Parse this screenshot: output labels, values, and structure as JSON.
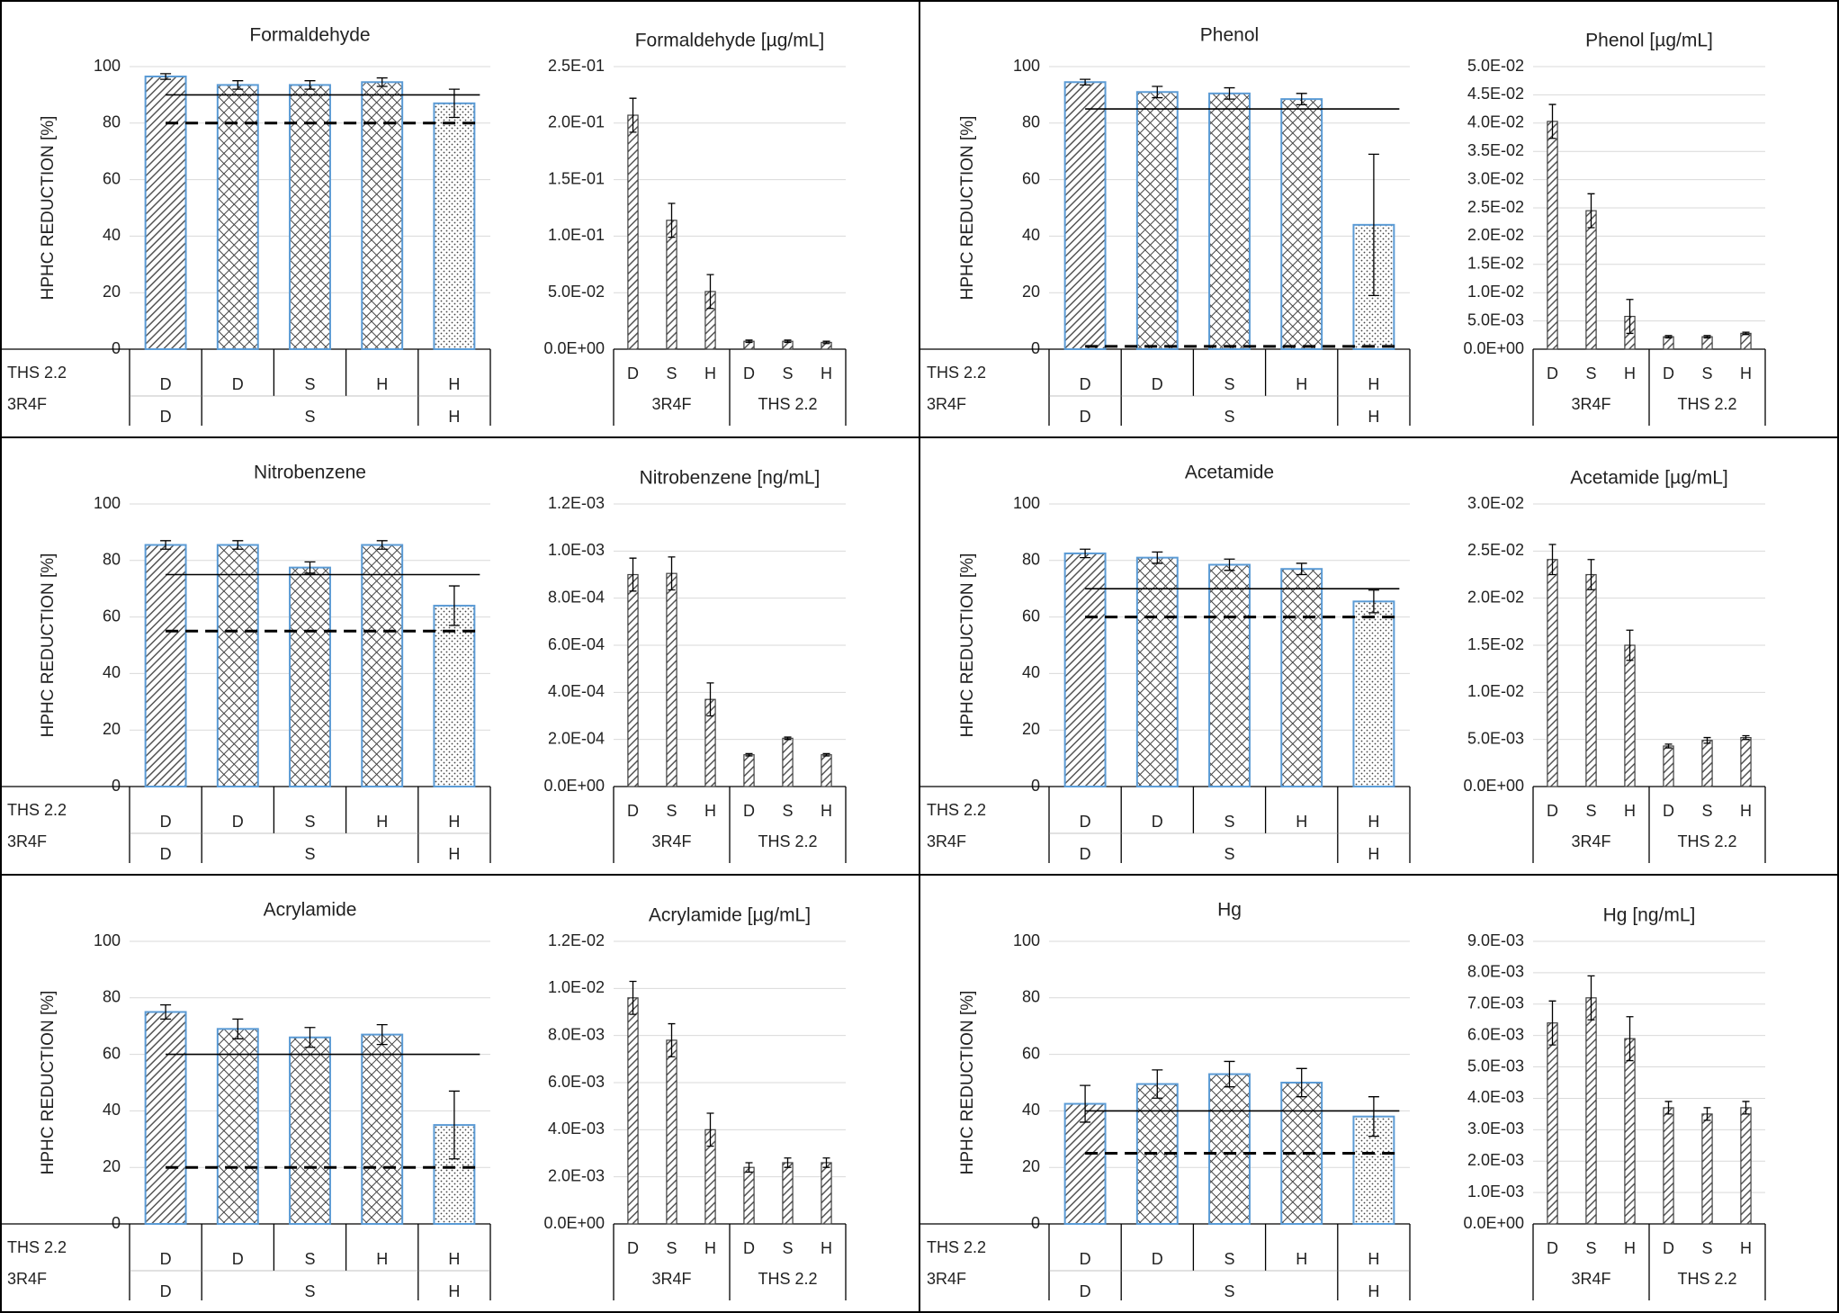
{
  "chart_data": [
    {
      "type": "bar",
      "title": "Formaldehyde",
      "y_label": "HPHC REDUCTION [%]",
      "ylim": [
        0,
        100
      ],
      "yticks": [
        0,
        20,
        40,
        60,
        80,
        100
      ],
      "grid": true,
      "row_labels": [
        "THS 2.2",
        "3R4F"
      ],
      "categories": [
        "D",
        "D",
        "S",
        "H",
        "H"
      ],
      "groups": [
        {
          "label": "D",
          "size": 1
        },
        {
          "label": "S",
          "size": 3
        },
        {
          "label": "H",
          "size": 1
        }
      ],
      "values": [
        96.5,
        93.5,
        93.5,
        94.5,
        87
      ],
      "errors": [
        1,
        1.5,
        1.5,
        1.5,
        5
      ],
      "patterns": [
        "hatch",
        "crosshatch",
        "crosshatch",
        "crosshatch",
        "dots"
      ],
      "edge_color": "#5b9bd5",
      "reference_lines": [
        {
          "value": 90,
          "style": "solid"
        },
        {
          "value": 80,
          "style": "dashed"
        }
      ]
    },
    {
      "type": "bar",
      "title": "Formaldehyde [µg/mL]",
      "ylim": [
        0,
        0.25
      ],
      "yticks": [
        {
          "value": 0,
          "label": "0.0E+00"
        },
        {
          "value": 0.05,
          "label": "5.0E-02"
        },
        {
          "value": 0.1,
          "label": "1.0E-01"
        },
        {
          "value": 0.15,
          "label": "1.5E-01"
        },
        {
          "value": 0.2,
          "label": "2.0E-01"
        },
        {
          "value": 0.25,
          "label": "2.5E-01"
        }
      ],
      "grid": true,
      "categories": [
        "D",
        "S",
        "H",
        "D",
        "S",
        "H"
      ],
      "groups": [
        {
          "label": "3R4F",
          "size": 3
        },
        {
          "label": "THS 2.2",
          "size": 3
        }
      ],
      "values": [
        0.207,
        0.114,
        0.051,
        0.007,
        0.007,
        0.006
      ],
      "errors": [
        0.015,
        0.015,
        0.015,
        0.001,
        0.001,
        0.001
      ],
      "patterns": [
        "hatch",
        "hatch",
        "hatch",
        "hatch",
        "hatch",
        "hatch"
      ],
      "edge_color": "#404040"
    },
    {
      "type": "bar",
      "title": "Phenol",
      "y_label": "HPHC REDUCTION [%]",
      "ylim": [
        0,
        100
      ],
      "yticks": [
        0,
        20,
        40,
        60,
        80,
        100
      ],
      "grid": true,
      "row_labels": [
        "THS 2.2",
        "3R4F"
      ],
      "categories": [
        "D",
        "D",
        "S",
        "H",
        "H"
      ],
      "groups": [
        {
          "label": "D",
          "size": 1
        },
        {
          "label": "S",
          "size": 3
        },
        {
          "label": "H",
          "size": 1
        }
      ],
      "values": [
        94.5,
        91,
        90.5,
        88.5,
        44
      ],
      "errors": [
        1,
        2,
        2,
        2,
        25
      ],
      "patterns": [
        "hatch",
        "crosshatch",
        "crosshatch",
        "crosshatch",
        "dots"
      ],
      "edge_color": "#5b9bd5",
      "reference_lines": [
        {
          "value": 85,
          "style": "solid"
        },
        {
          "value": 1,
          "style": "dashed"
        }
      ]
    },
    {
      "type": "bar",
      "title": "Phenol [µg/mL]",
      "ylim": [
        0,
        0.05
      ],
      "yticks": [
        {
          "value": 0,
          "label": "0.0E+00"
        },
        {
          "value": 0.005,
          "label": "5.0E-03"
        },
        {
          "value": 0.01,
          "label": "1.0E-02"
        },
        {
          "value": 0.015,
          "label": "1.5E-02"
        },
        {
          "value": 0.02,
          "label": "2.0E-02"
        },
        {
          "value": 0.025,
          "label": "2.5E-02"
        },
        {
          "value": 0.03,
          "label": "3.0E-02"
        },
        {
          "value": 0.035,
          "label": "3.5E-02"
        },
        {
          "value": 0.04,
          "label": "4.0E-02"
        },
        {
          "value": 0.045,
          "label": "4.5E-02"
        },
        {
          "value": 0.05,
          "label": "5.0E-02"
        }
      ],
      "grid": true,
      "categories": [
        "D",
        "S",
        "H",
        "D",
        "S",
        "H"
      ],
      "groups": [
        {
          "label": "3R4F",
          "size": 3
        },
        {
          "label": "THS 2.2",
          "size": 3
        }
      ],
      "values": [
        0.0403,
        0.0245,
        0.0058,
        0.0022,
        0.0022,
        0.0028
      ],
      "errors": [
        0.003,
        0.003,
        0.003,
        0.0002,
        0.0002,
        0.0002
      ],
      "patterns": [
        "hatch",
        "hatch",
        "hatch",
        "hatch",
        "hatch",
        "hatch"
      ],
      "edge_color": "#404040"
    },
    {
      "type": "bar",
      "title": "Nitrobenzene",
      "y_label": "HPHC REDUCTION [%]",
      "ylim": [
        0,
        100
      ],
      "yticks": [
        0,
        20,
        40,
        60,
        80,
        100
      ],
      "grid": true,
      "row_labels": [
        "THS 2.2",
        "3R4F"
      ],
      "categories": [
        "D",
        "D",
        "S",
        "H",
        "H"
      ],
      "groups": [
        {
          "label": "D",
          "size": 1
        },
        {
          "label": "S",
          "size": 3
        },
        {
          "label": "H",
          "size": 1
        }
      ],
      "values": [
        85.5,
        85.5,
        77.5,
        85.5,
        64
      ],
      "errors": [
        1.5,
        1.5,
        2,
        1.5,
        7
      ],
      "patterns": [
        "hatch",
        "crosshatch",
        "crosshatch",
        "crosshatch",
        "dots"
      ],
      "edge_color": "#5b9bd5",
      "reference_lines": [
        {
          "value": 75,
          "style": "solid"
        },
        {
          "value": 55,
          "style": "dashed"
        }
      ]
    },
    {
      "type": "bar",
      "title": "Nitrobenzene [ng/mL]",
      "ylim": [
        0,
        0.0012
      ],
      "yticks": [
        {
          "value": 0,
          "label": "0.0E+00"
        },
        {
          "value": 0.0002,
          "label": "2.0E-04"
        },
        {
          "value": 0.0004,
          "label": "4.0E-04"
        },
        {
          "value": 0.0006,
          "label": "6.0E-04"
        },
        {
          "value": 0.0008,
          "label": "8.0E-04"
        },
        {
          "value": 0.001,
          "label": "1.0E-03"
        },
        {
          "value": 0.0012,
          "label": "1.2E-03"
        }
      ],
      "grid": true,
      "categories": [
        "D",
        "S",
        "H",
        "D",
        "S",
        "H"
      ],
      "groups": [
        {
          "label": "3R4F",
          "size": 3
        },
        {
          "label": "THS 2.2",
          "size": 3
        }
      ],
      "values": [
        0.0009,
        0.000905,
        0.00037,
        0.000135,
        0.000205,
        0.000135
      ],
      "errors": [
        7e-05,
        7e-05,
        7e-05,
        5e-06,
        5e-06,
        5e-06
      ],
      "patterns": [
        "hatch",
        "hatch",
        "hatch",
        "hatch",
        "hatch",
        "hatch"
      ],
      "edge_color": "#404040"
    },
    {
      "type": "bar",
      "title": "Acetamide",
      "y_label": "HPHC REDUCTION [%]",
      "ylim": [
        0,
        100
      ],
      "yticks": [
        0,
        20,
        40,
        60,
        80,
        100
      ],
      "grid": true,
      "row_labels": [
        "THS 2.2",
        "3R4F"
      ],
      "categories": [
        "D",
        "D",
        "S",
        "H",
        "H"
      ],
      "groups": [
        {
          "label": "D",
          "size": 1
        },
        {
          "label": "S",
          "size": 3
        },
        {
          "label": "H",
          "size": 1
        }
      ],
      "values": [
        82.5,
        81,
        78.5,
        77,
        65.5
      ],
      "errors": [
        1.5,
        2,
        2,
        2,
        4
      ],
      "patterns": [
        "hatch",
        "crosshatch",
        "crosshatch",
        "crosshatch",
        "dots"
      ],
      "edge_color": "#5b9bd5",
      "reference_lines": [
        {
          "value": 70,
          "style": "solid"
        },
        {
          "value": 60,
          "style": "dashed"
        }
      ]
    },
    {
      "type": "bar",
      "title": "Acetamide [µg/mL]",
      "ylim": [
        0,
        0.03
      ],
      "yticks": [
        {
          "value": 0,
          "label": "0.0E+00"
        },
        {
          "value": 0.005,
          "label": "5.0E-03"
        },
        {
          "value": 0.01,
          "label": "1.0E-02"
        },
        {
          "value": 0.015,
          "label": "1.5E-02"
        },
        {
          "value": 0.02,
          "label": "2.0E-02"
        },
        {
          "value": 0.025,
          "label": "2.5E-02"
        },
        {
          "value": 0.03,
          "label": "3.0E-02"
        }
      ],
      "grid": true,
      "categories": [
        "D",
        "S",
        "H",
        "D",
        "S",
        "H"
      ],
      "groups": [
        {
          "label": "3R4F",
          "size": 3
        },
        {
          "label": "THS 2.2",
          "size": 3
        }
      ],
      "values": [
        0.0241,
        0.0225,
        0.015,
        0.0043,
        0.0049,
        0.0052
      ],
      "errors": [
        0.0016,
        0.0016,
        0.0016,
        0.0002,
        0.0003,
        0.0002
      ],
      "patterns": [
        "hatch",
        "hatch",
        "hatch",
        "hatch",
        "hatch",
        "hatch"
      ],
      "edge_color": "#404040"
    },
    {
      "type": "bar",
      "title": "Acrylamide",
      "y_label": "HPHC REDUCTION [%]",
      "ylim": [
        0,
        100
      ],
      "yticks": [
        0,
        20,
        40,
        60,
        80,
        100
      ],
      "grid": true,
      "row_labels": [
        "THS 2.2",
        "3R4F"
      ],
      "categories": [
        "D",
        "D",
        "S",
        "H",
        "H"
      ],
      "groups": [
        {
          "label": "D",
          "size": 1
        },
        {
          "label": "S",
          "size": 3
        },
        {
          "label": "H",
          "size": 1
        }
      ],
      "values": [
        75,
        69,
        66,
        67,
        35
      ],
      "errors": [
        2.5,
        3.5,
        3.5,
        3.5,
        12
      ],
      "patterns": [
        "hatch",
        "crosshatch",
        "crosshatch",
        "crosshatch",
        "dots"
      ],
      "edge_color": "#5b9bd5",
      "reference_lines": [
        {
          "value": 60,
          "style": "solid"
        },
        {
          "value": 20,
          "style": "dashed"
        }
      ]
    },
    {
      "type": "bar",
      "title": "Acrylamide [µg/mL]",
      "ylim": [
        0,
        0.012
      ],
      "yticks": [
        {
          "value": 0,
          "label": "0.0E+00"
        },
        {
          "value": 0.002,
          "label": "2.0E-03"
        },
        {
          "value": 0.004,
          "label": "4.0E-03"
        },
        {
          "value": 0.006,
          "label": "6.0E-03"
        },
        {
          "value": 0.008,
          "label": "8.0E-03"
        },
        {
          "value": 0.01,
          "label": "1.0E-02"
        },
        {
          "value": 0.012,
          "label": "1.2E-02"
        }
      ],
      "grid": true,
      "categories": [
        "D",
        "S",
        "H",
        "D",
        "S",
        "H"
      ],
      "groups": [
        {
          "label": "3R4F",
          "size": 3
        },
        {
          "label": "THS 2.2",
          "size": 3
        }
      ],
      "values": [
        0.0096,
        0.0078,
        0.004,
        0.0024,
        0.0026,
        0.0026
      ],
      "errors": [
        0.0007,
        0.0007,
        0.0007,
        0.0002,
        0.0002,
        0.0002
      ],
      "patterns": [
        "hatch",
        "hatch",
        "hatch",
        "hatch",
        "hatch",
        "hatch"
      ],
      "edge_color": "#404040"
    },
    {
      "type": "bar",
      "title": "Hg",
      "y_label": "HPHC REDUCTION [%]",
      "ylim": [
        0,
        100
      ],
      "yticks": [
        0,
        20,
        40,
        60,
        80,
        100
      ],
      "grid": true,
      "row_labels": [
        "THS 2.2",
        "3R4F"
      ],
      "categories": [
        "D",
        "D",
        "S",
        "H",
        "H"
      ],
      "groups": [
        {
          "label": "D",
          "size": 1
        },
        {
          "label": "S",
          "size": 3
        },
        {
          "label": "H",
          "size": 1
        }
      ],
      "values": [
        42.5,
        49.5,
        53,
        50,
        38
      ],
      "errors": [
        6.5,
        5,
        4.5,
        5,
        7
      ],
      "patterns": [
        "hatch",
        "crosshatch",
        "crosshatch",
        "crosshatch",
        "dots"
      ],
      "edge_color": "#5b9bd5",
      "reference_lines": [
        {
          "value": 40,
          "style": "solid"
        },
        {
          "value": 25,
          "style": "dashed"
        }
      ]
    },
    {
      "type": "bar",
      "title": "Hg [ng/mL]",
      "ylim": [
        0,
        0.009
      ],
      "yticks": [
        {
          "value": 0,
          "label": "0.0E+00"
        },
        {
          "value": 0.001,
          "label": "1.0E-03"
        },
        {
          "value": 0.002,
          "label": "2.0E-03"
        },
        {
          "value": 0.003,
          "label": "3.0E-03"
        },
        {
          "value": 0.004,
          "label": "4.0E-03"
        },
        {
          "value": 0.005,
          "label": "5.0E-03"
        },
        {
          "value": 0.006,
          "label": "6.0E-03"
        },
        {
          "value": 0.007,
          "label": "7.0E-03"
        },
        {
          "value": 0.008,
          "label": "8.0E-03"
        },
        {
          "value": 0.009,
          "label": "9.0E-03"
        }
      ],
      "grid": true,
      "categories": [
        "D",
        "S",
        "H",
        "D",
        "S",
        "H"
      ],
      "groups": [
        {
          "label": "3R4F",
          "size": 3
        },
        {
          "label": "THS 2.2",
          "size": 3
        }
      ],
      "values": [
        0.0064,
        0.0072,
        0.0059,
        0.0037,
        0.0035,
        0.0037
      ],
      "errors": [
        0.0007,
        0.0007,
        0.0007,
        0.0002,
        0.0002,
        0.0002
      ],
      "patterns": [
        "hatch",
        "hatch",
        "hatch",
        "hatch",
        "hatch",
        "hatch"
      ],
      "edge_color": "#404040"
    }
  ]
}
